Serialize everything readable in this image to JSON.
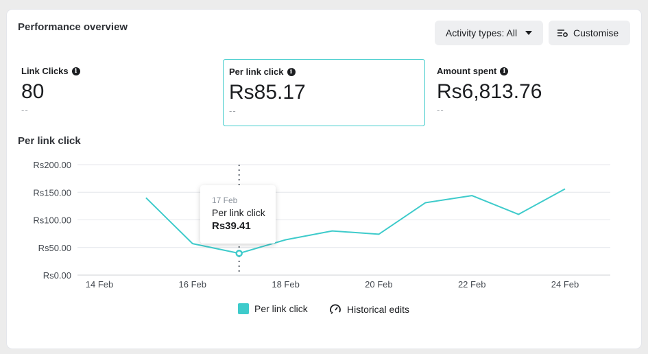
{
  "header": {
    "title": "Performance overview",
    "activity_button": "Activity types: All",
    "customise_button": "Customise"
  },
  "metrics": [
    {
      "label": "Link Clicks",
      "value": "80",
      "sub": "--"
    },
    {
      "label": "Per link click",
      "value": "Rs85.17",
      "sub": "--"
    },
    {
      "label": "Amount spent",
      "value": "Rs6,813.76",
      "sub": "--"
    }
  ],
  "chart_title": "Per link click",
  "tooltip": {
    "date": "17 Feb",
    "label": "Per link click",
    "value": "Rs39.41"
  },
  "legend": {
    "series": "Per link click",
    "edits": "Historical edits"
  },
  "colors": {
    "accent": "#3ecbcb",
    "grid": "#e4e6eb"
  },
  "chart_data": {
    "type": "line",
    "x": [
      "15 Feb",
      "16 Feb",
      "17 Feb",
      "18 Feb",
      "19 Feb",
      "20 Feb",
      "21 Feb",
      "22 Feb",
      "23 Feb",
      "24 Feb"
    ],
    "series": [
      {
        "name": "Per link click",
        "values": [
          140,
          57,
          39.41,
          64,
          80,
          74,
          131,
          144,
          110,
          156
        ]
      }
    ],
    "x_tick_labels": [
      "14 Feb",
      "16 Feb",
      "18 Feb",
      "20 Feb",
      "22 Feb",
      "24 Feb"
    ],
    "y_tick_labels": [
      "Rs0.00",
      "Rs50.00",
      "Rs100.00",
      "Rs150.00",
      "Rs200.00"
    ],
    "y_ticks": [
      0,
      50,
      100,
      150,
      200
    ],
    "ylim": [
      0,
      200
    ],
    "highlight": "17 Feb",
    "grid": true,
    "legend_position": "bottom"
  }
}
